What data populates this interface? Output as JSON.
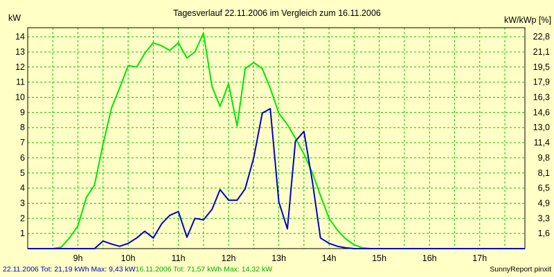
{
  "chart_data": {
    "type": "line",
    "title": "Tagesverlauf 22.11.2006 im Vergleich zum 16.11.2006",
    "ylabel_left": "kW",
    "ylabel_right": "kW/kWp [%]",
    "ylim": [
      0,
      14.6
    ],
    "yticks_left": [
      "1",
      "2",
      "3",
      "4",
      "5",
      "6",
      "7",
      "8",
      "9",
      "10",
      "11",
      "12",
      "13",
      "14"
    ],
    "yticks_right": [
      "1,6",
      "3,3",
      "4,9",
      "6,5",
      "8,1",
      "9,8",
      "11,4",
      "13,0",
      "14,6",
      "16,3",
      "17,9",
      "19,5",
      "21,1",
      "22,8"
    ],
    "xlim": [
      8.0,
      17.9
    ],
    "xticks": [
      9,
      10,
      11,
      12,
      13,
      14,
      15,
      16,
      17
    ],
    "xtick_labels": [
      "9h",
      "10h",
      "11h",
      "12h",
      "13h",
      "14h",
      "15h",
      "16h",
      "17h"
    ],
    "grid": true,
    "series": [
      {
        "name": "22.11.2006",
        "color": "#0000c8",
        "x": [
          8.0,
          8.33,
          8.5,
          8.67,
          8.83,
          9.0,
          9.17,
          9.33,
          9.5,
          9.67,
          9.83,
          10.0,
          10.17,
          10.33,
          10.5,
          10.67,
          10.83,
          11.0,
          11.17,
          11.33,
          11.5,
          11.67,
          11.83,
          12.0,
          12.17,
          12.33,
          12.5,
          12.67,
          12.83,
          13.0,
          13.17,
          13.33,
          13.5,
          13.67,
          13.83,
          14.0,
          14.17,
          14.33,
          14.5,
          14.67,
          14.83,
          15.0,
          15.17,
          15.33,
          15.5,
          15.67,
          15.83,
          16.0,
          16.17,
          16.33,
          16.5,
          16.67,
          16.83,
          17.0,
          17.17,
          17.33,
          17.5,
          17.67,
          17.9
        ],
        "values": [
          0,
          0,
          0,
          0,
          0,
          0,
          0,
          0,
          0.5,
          0.3,
          0.15,
          0.35,
          0.7,
          1.15,
          0.7,
          1.65,
          2.2,
          2.45,
          0.75,
          2.0,
          1.9,
          2.6,
          3.9,
          3.2,
          3.2,
          3.95,
          6.0,
          8.95,
          9.25,
          3.1,
          1.3,
          7.1,
          7.75,
          4.4,
          0.7,
          0.35,
          0.15,
          0.05,
          0,
          0,
          0,
          0,
          0,
          0,
          0,
          0,
          0,
          0,
          0,
          0,
          0,
          0,
          0,
          0,
          0,
          0,
          0,
          0,
          0
        ]
      },
      {
        "name": "16.11.2006",
        "color": "#00e600",
        "x": [
          8.0,
          8.33,
          8.5,
          8.67,
          8.83,
          9.0,
          9.17,
          9.33,
          9.5,
          9.67,
          9.83,
          10.0,
          10.17,
          10.33,
          10.5,
          10.67,
          10.83,
          11.0,
          11.17,
          11.33,
          11.5,
          11.67,
          11.83,
          12.0,
          12.17,
          12.33,
          12.5,
          12.67,
          12.83,
          13.0,
          13.17,
          13.33,
          13.5,
          13.67,
          13.83,
          14.0,
          14.17,
          14.33,
          14.5,
          14.67,
          14.83,
          15.0,
          15.17,
          15.33,
          15.5,
          15.67,
          15.83,
          16.0,
          16.17,
          16.33,
          16.5,
          16.67,
          16.83,
          17.0,
          17.17,
          17.33,
          17.5,
          17.67,
          17.9
        ],
        "values": [
          0,
          0,
          0,
          0.1,
          0.7,
          1.5,
          3.4,
          4.2,
          6.9,
          9.3,
          10.6,
          12.1,
          12.0,
          12.9,
          13.6,
          13.4,
          13.1,
          13.6,
          12.6,
          13.0,
          14.25,
          10.7,
          9.4,
          10.9,
          8.1,
          11.9,
          12.3,
          11.9,
          10.6,
          8.95,
          8.2,
          7.3,
          6.25,
          5.0,
          3.5,
          2.0,
          1.2,
          0.65,
          0.25,
          0.05,
          0,
          0,
          0,
          0,
          0,
          0,
          0,
          0,
          0,
          0,
          0,
          0,
          0,
          0,
          0,
          0,
          0,
          0,
          0
        ]
      }
    ]
  },
  "legend": {
    "series1_text": "22.11.2006 Tot: 21,19 kWh Max: 9,43 kW",
    "series2_text": "16.11.2006 Tot: 71,57 kWh Max: 14,32 kW",
    "series1_color": "#0000c8",
    "series2_color": "#00b000"
  },
  "credit": "SunnyReport pinxit"
}
